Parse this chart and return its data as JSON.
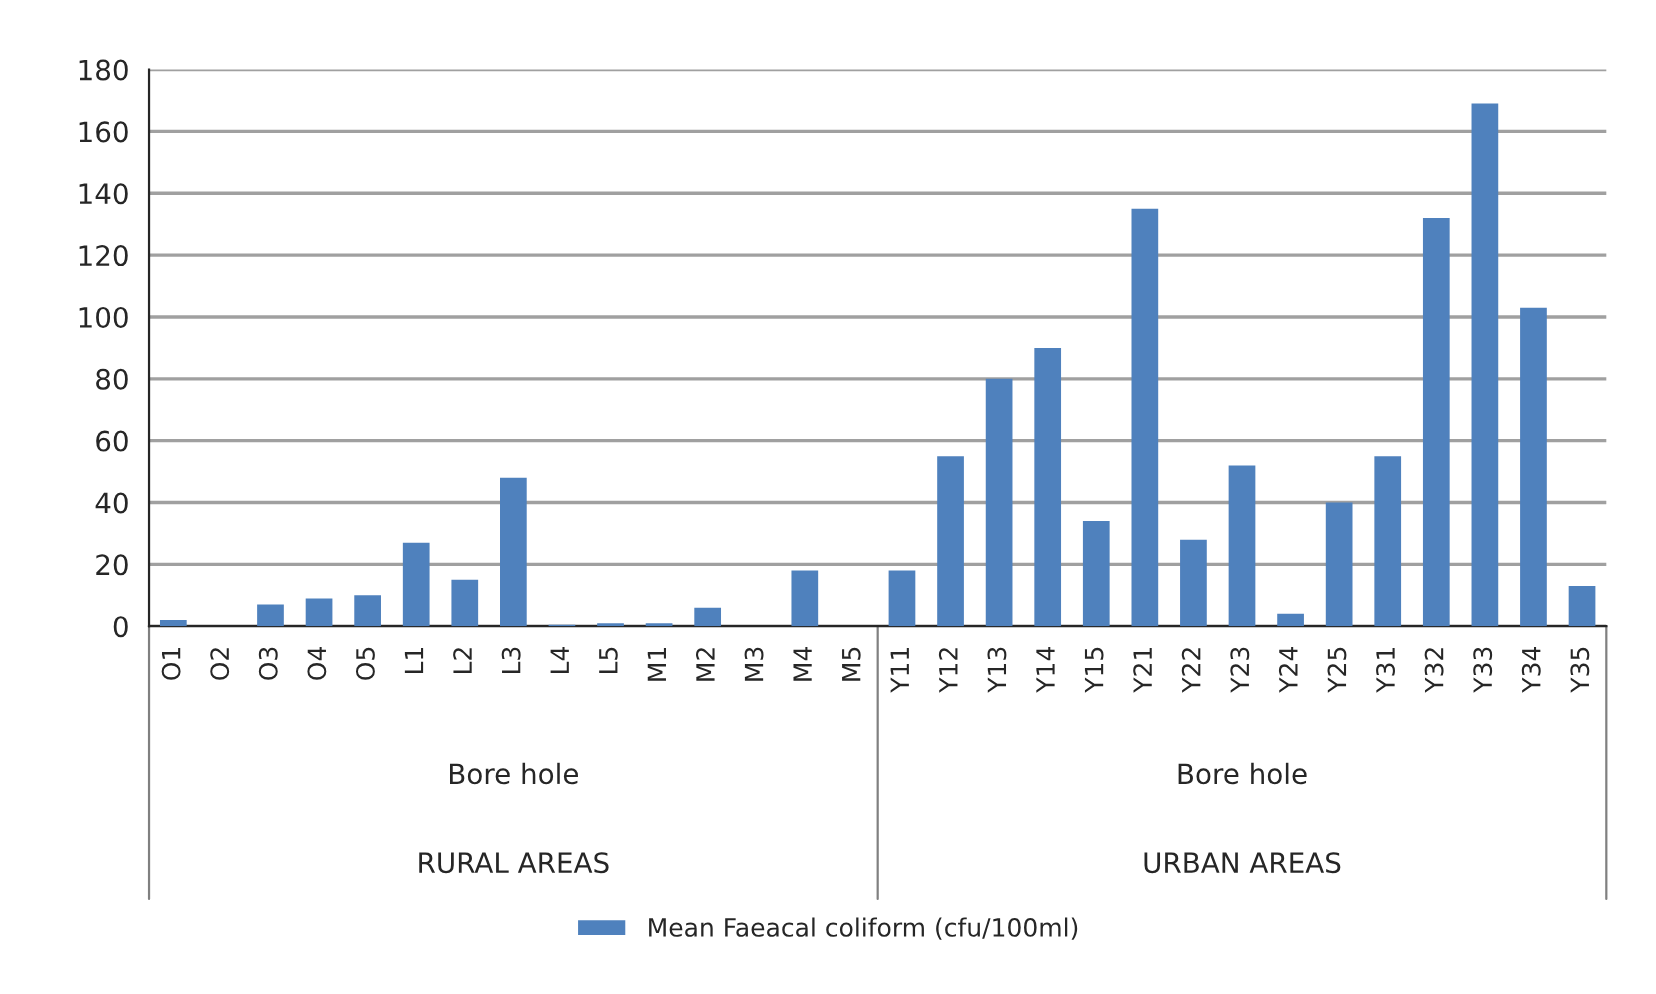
{
  "chart_data": {
    "type": "bar",
    "categories": [
      "O1",
      "O2",
      "O3",
      "O4",
      "O5",
      "L1",
      "L2",
      "L3",
      "L4",
      "L5",
      "M1",
      "M2",
      "M3",
      "M4",
      "M5",
      "Y11",
      "Y12",
      "Y13",
      "Y14",
      "Y15",
      "Y21",
      "Y22",
      "Y23",
      "Y24",
      "Y25",
      "Y31",
      "Y32",
      "Y33",
      "Y34",
      "Y35"
    ],
    "series": [
      {
        "name": "Mean Faeacal coliform (cfu/100ml)",
        "color": "#4f81bd",
        "values": [
          2,
          0,
          7,
          9,
          10,
          27,
          15,
          48,
          0.5,
          1,
          1,
          6,
          0,
          18,
          0,
          18,
          55,
          80,
          90,
          34,
          135,
          28,
          52,
          4,
          40,
          55,
          132,
          169,
          103,
          13
        ]
      }
    ],
    "ylim": [
      0,
      180
    ],
    "yticks": [
      0,
      20,
      40,
      60,
      80,
      100,
      120,
      140,
      160,
      180
    ],
    "grid": "y",
    "legend": "bottom",
    "annotations": [
      "Bore hole",
      "RURAL AREAS",
      "Bore hole",
      "URBAN AREAS"
    ]
  }
}
